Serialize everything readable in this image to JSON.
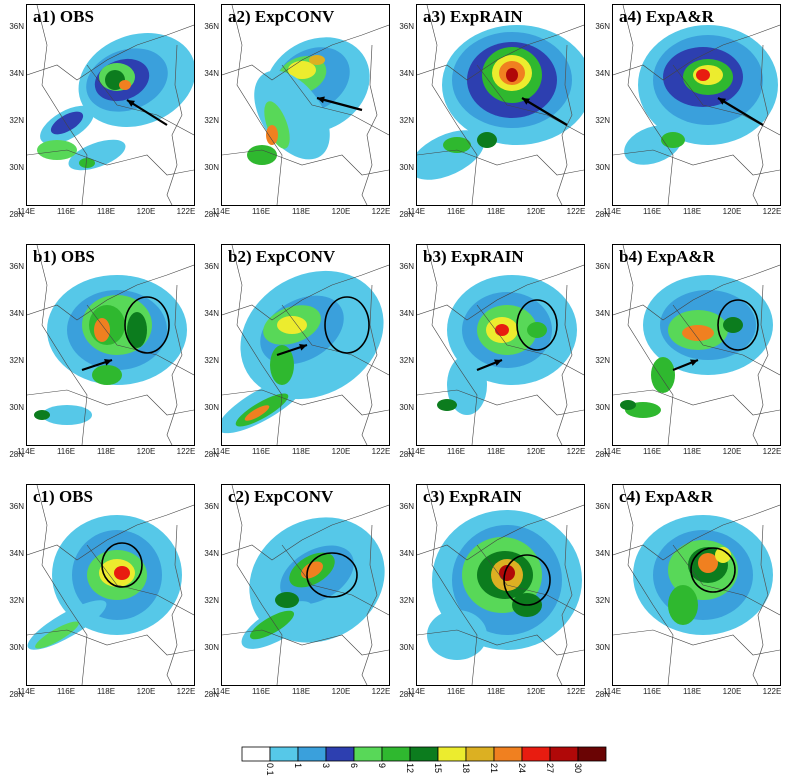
{
  "panels": [
    {
      "id": "a1",
      "title": "a1) OBS"
    },
    {
      "id": "a2",
      "title": "a2) ExpCONV"
    },
    {
      "id": "a3",
      "title": "a3) ExpRAIN"
    },
    {
      "id": "a4",
      "title": "a4) ExpA&R"
    },
    {
      "id": "b1",
      "title": "b1) OBS"
    },
    {
      "id": "b2",
      "title": "b2) ExpCONV"
    },
    {
      "id": "b3",
      "title": "b3) ExpRAIN"
    },
    {
      "id": "b4",
      "title": "b4) ExpA&R"
    },
    {
      "id": "c1",
      "title": "c1) OBS"
    },
    {
      "id": "c2",
      "title": "c2) ExpCONV"
    },
    {
      "id": "c3",
      "title": "c3) ExpRAIN"
    },
    {
      "id": "c4",
      "title": "c4) ExpA&R"
    }
  ],
  "lat_ticks": [
    "36N",
    "34N",
    "32N",
    "30N",
    "28N"
  ],
  "lon_ticks": [
    "114E",
    "116E",
    "118E",
    "120E",
    "122E"
  ],
  "colorbar": {
    "labels": [
      "0.1",
      "1",
      "3",
      "6",
      "9",
      "12",
      "15",
      "18",
      "21",
      "24",
      "27",
      "30"
    ],
    "colors": [
      "#ffffff",
      "#56c8e8",
      "#3aa0dc",
      "#2d3fb0",
      "#58d858",
      "#2fb82f",
      "#0c7c1e",
      "#ecec2e",
      "#dcb022",
      "#f08020",
      "#e81c10",
      "#b00808",
      "#6a0404"
    ]
  }
}
